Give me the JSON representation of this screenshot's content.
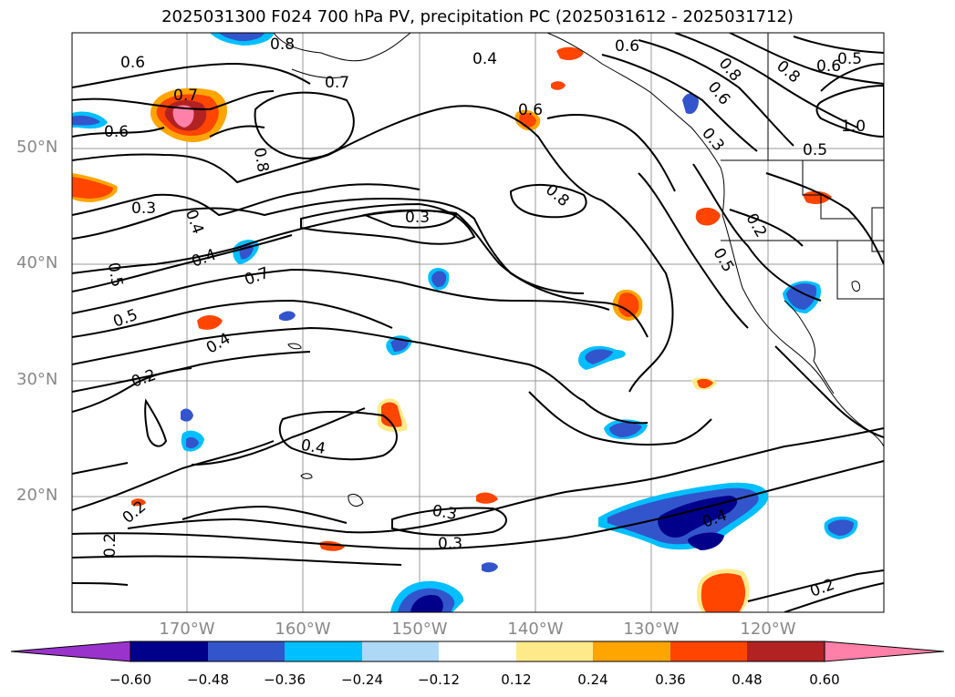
{
  "title": "2025031300 F024 700 hPa PV, precipitation PC (2025031612 - 2025031712)",
  "lat_labels": [
    "50°N",
    "40°N",
    "30°N",
    "20°N"
  ],
  "lon_labels": [
    "170°W",
    "160°W",
    "150°W",
    "140°W",
    "130°W",
    "120°W"
  ],
  "contour_labels": [
    "0.6",
    "0.8",
    "0.7",
    "0.6",
    "0.7",
    "0.8",
    "0.4",
    "0.6",
    "0.8",
    "0.6",
    "0.5",
    "0.6",
    "0.8",
    "0.3",
    "0.5",
    "1.0",
    "0.3",
    "0.4",
    "0.3",
    "0.8",
    "0.6",
    "0.7",
    "0.4",
    "0.5",
    "0.4",
    "0.5",
    "0.2",
    "0.5",
    "0.2",
    "0.4",
    "0.3",
    "0.3",
    "0.2",
    "0.2",
    "0.4",
    "0.2"
  ],
  "colorbar": {
    "ticks": [
      "−0.60",
      "−0.48",
      "−0.36",
      "−0.24",
      "−0.12",
      "0.12",
      "0.24",
      "0.36",
      "0.48",
      "0.60"
    ],
    "colors": [
      "#9933cc",
      "#00008b",
      "#3355cc",
      "#00bfff",
      "#add8f6",
      "#ffffff",
      "#ffea8a",
      "#ffa500",
      "#ff4500",
      "#b22222",
      "#ff80a8"
    ]
  },
  "colors": {
    "neg_strong": "#00008b",
    "neg_mid": "#3355cc",
    "neg_light": "#00bfff",
    "pos_light": "#ffea8a",
    "pos_mid": "#ffa500",
    "pos_strong": "#ff4500",
    "pos_darker": "#b22222",
    "pos_pink": "#ff80a8"
  }
}
